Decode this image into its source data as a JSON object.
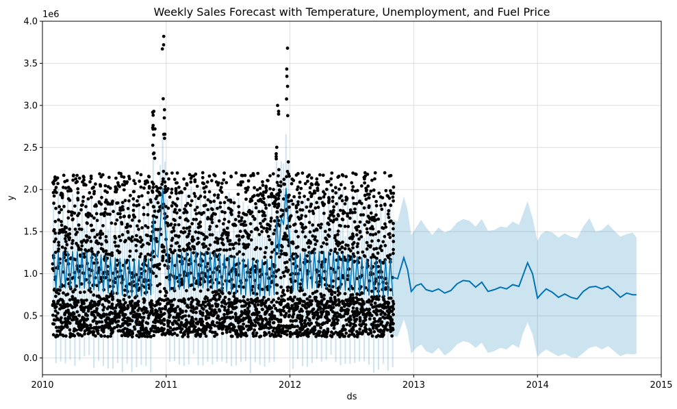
{
  "chart_data": {
    "type": "line",
    "title": "Weekly Sales Forecast with Temperature, Unemployment, and Fuel Price",
    "xlabel": "ds",
    "ylabel": "y",
    "y_offset_label": "1e6",
    "xlim": [
      2010.0,
      2015.0
    ],
    "ylim": [
      -0.2,
      4.0
    ],
    "x_ticks": [
      2010,
      2011,
      2012,
      2013,
      2014,
      2015
    ],
    "x_tick_labels": [
      "2010",
      "2011",
      "2012",
      "2013",
      "2014",
      "2015"
    ],
    "y_ticks": [
      0.0,
      0.5,
      1.0,
      1.5,
      2.0,
      2.5,
      3.0,
      3.5,
      4.0
    ],
    "y_tick_labels": [
      "0.0",
      "0.5",
      "1.0",
      "1.5",
      "2.0",
      "2.5",
      "3.0",
      "3.5",
      "4.0"
    ],
    "grid": true,
    "colors": {
      "forecast": "#0072B2",
      "interval": "#0072B2",
      "points": "#000000"
    },
    "observed_range": {
      "x_start": 2010.09,
      "x_end": 2012.83,
      "holiday_peaks": [
        {
          "x": 2010.98,
          "y_max": 3.82
        },
        {
          "x": 2011.98,
          "y_max": 3.68
        },
        {
          "x": 2010.9,
          "y_max": 2.93
        },
        {
          "x": 2011.9,
          "y_max": 3.0
        }
      ]
    },
    "series": [
      {
        "kind": "forecast",
        "x": [
          2012.83,
          2012.87,
          2012.92,
          2012.95,
          2012.98,
          2013.02,
          2013.06,
          2013.1,
          2013.15,
          2013.2,
          2013.25,
          2013.3,
          2013.35,
          2013.4,
          2013.45,
          2013.5,
          2013.55,
          2013.6,
          2013.65,
          2013.7,
          2013.75,
          2013.8,
          2013.85,
          2013.88,
          2013.92,
          2013.96,
          2014.0,
          2014.03,
          2014.07,
          2014.12,
          2014.17,
          2014.22,
          2014.27,
          2014.32,
          2014.37,
          2014.42,
          2014.47,
          2014.52,
          2014.57,
          2014.62,
          2014.67,
          2014.72,
          2014.77,
          2014.8
        ],
        "y": [
          0.96,
          0.94,
          1.19,
          1.05,
          0.79,
          0.86,
          0.88,
          0.81,
          0.79,
          0.82,
          0.77,
          0.8,
          0.88,
          0.92,
          0.91,
          0.84,
          0.9,
          0.79,
          0.81,
          0.84,
          0.82,
          0.87,
          0.85,
          0.97,
          1.13,
          1.0,
          0.71,
          0.76,
          0.82,
          0.78,
          0.72,
          0.76,
          0.72,
          0.7,
          0.79,
          0.84,
          0.85,
          0.82,
          0.85,
          0.79,
          0.72,
          0.77,
          0.75,
          0.75
        ]
      },
      {
        "kind": "interval_upper",
        "x": [
          2012.83,
          2012.87,
          2012.92,
          2012.95,
          2012.98,
          2013.02,
          2013.06,
          2013.1,
          2013.15,
          2013.2,
          2013.25,
          2013.3,
          2013.35,
          2013.4,
          2013.45,
          2013.5,
          2013.55,
          2013.6,
          2013.65,
          2013.7,
          2013.75,
          2013.8,
          2013.85,
          2013.88,
          2013.92,
          2013.96,
          2014.0,
          2014.03,
          2014.07,
          2014.12,
          2014.17,
          2014.22,
          2014.27,
          2014.32,
          2014.37,
          2014.42,
          2014.47,
          2014.52,
          2014.57,
          2014.62,
          2014.67,
          2014.72,
          2014.77,
          2014.8
        ],
        "y": [
          1.65,
          1.62,
          1.92,
          1.76,
          1.46,
          1.55,
          1.64,
          1.55,
          1.46,
          1.55,
          1.49,
          1.52,
          1.61,
          1.65,
          1.63,
          1.56,
          1.65,
          1.51,
          1.52,
          1.56,
          1.55,
          1.62,
          1.58,
          1.7,
          1.86,
          1.66,
          1.39,
          1.47,
          1.51,
          1.49,
          1.43,
          1.48,
          1.44,
          1.42,
          1.56,
          1.66,
          1.5,
          1.52,
          1.59,
          1.51,
          1.44,
          1.47,
          1.49,
          1.43
        ]
      },
      {
        "kind": "interval_lower",
        "x": [
          2012.83,
          2012.87,
          2012.92,
          2012.95,
          2012.98,
          2013.02,
          2013.06,
          2013.1,
          2013.15,
          2013.2,
          2013.25,
          2013.3,
          2013.35,
          2013.4,
          2013.45,
          2013.5,
          2013.55,
          2013.6,
          2013.65,
          2013.7,
          2013.75,
          2013.8,
          2013.85,
          2013.88,
          2013.92,
          2013.96,
          2014.0,
          2014.03,
          2014.07,
          2014.12,
          2014.17,
          2014.22,
          2014.27,
          2014.32,
          2014.37,
          2014.42,
          2014.47,
          2014.52,
          2014.57,
          2014.62,
          2014.67,
          2014.72,
          2014.77,
          2014.8
        ],
        "y": [
          0.26,
          0.25,
          0.46,
          0.32,
          0.05,
          0.12,
          0.16,
          0.08,
          0.05,
          0.12,
          0.03,
          0.08,
          0.16,
          0.2,
          0.18,
          0.12,
          0.18,
          0.06,
          0.08,
          0.12,
          0.1,
          0.16,
          0.12,
          0.28,
          0.42,
          0.28,
          0.01,
          0.06,
          0.1,
          0.06,
          0.02,
          0.05,
          0.01,
          0.0,
          0.06,
          0.12,
          0.14,
          0.1,
          0.14,
          0.08,
          0.02,
          0.05,
          0.04,
          0.05
        ]
      }
    ]
  }
}
